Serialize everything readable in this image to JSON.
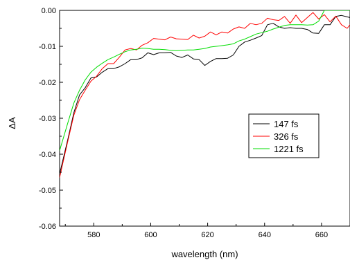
{
  "chart_data": {
    "type": "line",
    "title": "",
    "xlabel": "wavelength (nm)",
    "ylabel": "ΔA",
    "xlim": [
      568,
      670
    ],
    "ylim": [
      -0.06,
      0.0
    ],
    "xticks": [
      580,
      600,
      620,
      640,
      660
    ],
    "xtick_labels": [
      "580",
      "600",
      "620",
      "640",
      "660"
    ],
    "yticks": [
      -0.06,
      -0.05,
      -0.04,
      -0.03,
      -0.02,
      -0.01,
      0.0
    ],
    "ytick_labels": [
      "-0.06",
      "-0.05",
      "-0.04",
      "-0.03",
      "-0.02",
      "-0.01",
      "0.00"
    ],
    "grid": false,
    "legend_position": "center-right",
    "x": [
      568,
      571,
      573,
      575,
      577,
      579,
      581,
      583,
      585,
      587,
      589,
      591,
      593,
      595,
      597,
      599,
      601,
      603,
      605,
      607,
      609,
      611,
      613,
      615,
      617,
      619,
      621,
      623,
      625,
      627,
      629,
      631,
      633,
      635,
      637,
      639,
      641,
      643,
      645,
      647,
      649,
      651,
      653,
      655,
      657,
      659,
      661,
      663,
      665,
      667,
      669,
      670
    ],
    "series": [
      {
        "name": "147 fs",
        "color": "#000000",
        "values": [
          -0.0455,
          -0.0355,
          -0.0285,
          -0.0235,
          -0.0215,
          -0.0188,
          -0.0185,
          -0.0172,
          -0.0162,
          -0.0162,
          -0.0157,
          -0.0148,
          -0.0137,
          -0.0137,
          -0.0132,
          -0.0118,
          -0.0123,
          -0.0118,
          -0.0118,
          -0.0117,
          -0.0127,
          -0.0131,
          -0.0124,
          -0.0135,
          -0.0137,
          -0.0153,
          -0.0142,
          -0.0134,
          -0.0134,
          -0.0133,
          -0.0124,
          -0.01,
          -0.0088,
          -0.0083,
          -0.0077,
          -0.007,
          -0.004,
          -0.0036,
          -0.0046,
          -0.005,
          -0.0048,
          -0.005,
          -0.005,
          -0.0053,
          -0.0063,
          -0.0064,
          -0.004,
          -0.004,
          -0.0017,
          -0.0014,
          -0.0018,
          -0.002
        ]
      },
      {
        "name": "326 fs",
        "color": "#ff0000",
        "values": [
          -0.0465,
          -0.036,
          -0.0292,
          -0.0248,
          -0.0222,
          -0.0197,
          -0.0183,
          -0.0162,
          -0.0148,
          -0.0148,
          -0.013,
          -0.011,
          -0.0106,
          -0.011,
          -0.0097,
          -0.009,
          -0.0078,
          -0.008,
          -0.0082,
          -0.0074,
          -0.0079,
          -0.008,
          -0.0081,
          -0.0069,
          -0.0077,
          -0.0072,
          -0.006,
          -0.0068,
          -0.006,
          -0.0063,
          -0.0052,
          -0.0046,
          -0.005,
          -0.0036,
          -0.004,
          -0.0036,
          -0.0022,
          -0.0026,
          -0.0028,
          -0.0017,
          -0.0036,
          -0.0013,
          -0.0034,
          -0.002,
          -0.0006,
          -0.0024,
          -0.0012,
          -0.0032,
          -0.0016,
          -0.004,
          -0.005,
          -0.004
        ]
      },
      {
        "name": "1221 fs",
        "color": "#00dd00",
        "values": [
          -0.039,
          -0.031,
          -0.0258,
          -0.0222,
          -0.0193,
          -0.0172,
          -0.0158,
          -0.0147,
          -0.0137,
          -0.013,
          -0.0122,
          -0.0115,
          -0.011,
          -0.0108,
          -0.0105,
          -0.0106,
          -0.0108,
          -0.0108,
          -0.0109,
          -0.0111,
          -0.0112,
          -0.0111,
          -0.011,
          -0.011,
          -0.0108,
          -0.0106,
          -0.0102,
          -0.01,
          -0.0098,
          -0.0096,
          -0.0093,
          -0.0085,
          -0.008,
          -0.0073,
          -0.0066,
          -0.0062,
          -0.0058,
          -0.0052,
          -0.0047,
          -0.0042,
          -0.004,
          -0.004,
          -0.004,
          -0.0041,
          -0.004,
          -0.003,
          0.0,
          0.0,
          0.0,
          0.0,
          0.0,
          0.0
        ]
      }
    ]
  }
}
